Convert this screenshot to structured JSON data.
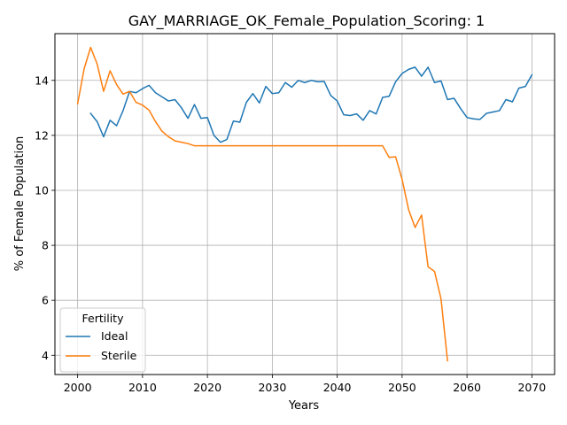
{
  "chart_data": {
    "type": "line",
    "title": "GAY_MARRIAGE_OK_Female_Population_Scoring: 1",
    "xlabel": "Years",
    "ylabel": "% of Female Population",
    "xlim": [
      1996.5,
      2073.5
    ],
    "ylim": [
      3.3,
      15.7
    ],
    "xticks": [
      2000,
      2010,
      2020,
      2030,
      2040,
      2050,
      2060,
      2070
    ],
    "yticks": [
      4,
      6,
      8,
      10,
      12,
      14
    ],
    "grid": true,
    "legend": {
      "title": "Fertility",
      "placement": "lower-left"
    },
    "colors": {
      "Ideal": "#1f77b4",
      "Sterile": "#ff7f0e"
    },
    "series": [
      {
        "name": "Ideal",
        "x": [
          2002,
          2003,
          2004,
          2005,
          2006,
          2007,
          2008,
          2009,
          2010,
          2011,
          2012,
          2013,
          2014,
          2015,
          2016,
          2017,
          2018,
          2019,
          2020,
          2021,
          2022,
          2023,
          2024,
          2025,
          2026,
          2027,
          2028,
          2029,
          2030,
          2031,
          2032,
          2033,
          2034,
          2035,
          2036,
          2037,
          2038,
          2039,
          2040,
          2041,
          2042,
          2043,
          2044,
          2045,
          2046,
          2047,
          2048,
          2049,
          2050,
          2051,
          2052,
          2053,
          2054,
          2055,
          2056,
          2057,
          2058,
          2059,
          2060,
          2061,
          2062,
          2063,
          2064,
          2065,
          2066,
          2067,
          2068,
          2069,
          2070
        ],
        "values": [
          12.8,
          12.5,
          11.95,
          12.55,
          12.35,
          12.9,
          13.6,
          13.55,
          13.7,
          13.82,
          13.55,
          13.4,
          13.25,
          13.3,
          13.0,
          12.62,
          13.12,
          12.62,
          12.65,
          12.0,
          11.75,
          11.85,
          12.52,
          12.48,
          13.2,
          13.52,
          13.18,
          13.78,
          13.52,
          13.55,
          13.92,
          13.75,
          14.0,
          13.92,
          14.0,
          13.95,
          13.96,
          13.45,
          13.25,
          12.75,
          12.72,
          12.78,
          12.55,
          12.9,
          12.78,
          13.38,
          13.42,
          13.95,
          14.25,
          14.4,
          14.48,
          14.15,
          14.48,
          13.92,
          13.98,
          13.3,
          13.35,
          12.98,
          12.65,
          12.6,
          12.58,
          12.8,
          12.85,
          12.9,
          13.3,
          13.22,
          13.72,
          13.78,
          14.2
        ]
      },
      {
        "name": "Sterile",
        "x": [
          2000,
          2001,
          2002,
          2003,
          2004,
          2005,
          2006,
          2007,
          2008,
          2009,
          2010,
          2011,
          2012,
          2013,
          2014,
          2015,
          2016,
          2017,
          2018,
          2019,
          2020,
          2021,
          2022,
          2023,
          2024,
          2025,
          2026,
          2027,
          2028,
          2029,
          2030,
          2031,
          2032,
          2033,
          2034,
          2035,
          2036,
          2037,
          2038,
          2039,
          2040,
          2041,
          2042,
          2043,
          2044,
          2045,
          2046,
          2047,
          2048,
          2049,
          2050,
          2051,
          2052,
          2053,
          2054,
          2055,
          2056,
          2057
        ],
        "values": [
          13.15,
          14.42,
          15.2,
          14.6,
          13.6,
          14.35,
          13.85,
          13.5,
          13.6,
          13.2,
          13.1,
          12.92,
          12.5,
          12.15,
          11.95,
          11.8,
          11.75,
          11.7,
          11.62,
          11.62,
          11.62,
          11.62,
          11.62,
          11.62,
          11.62,
          11.62,
          11.62,
          11.62,
          11.62,
          11.62,
          11.62,
          11.62,
          11.62,
          11.62,
          11.62,
          11.62,
          11.62,
          11.62,
          11.62,
          11.62,
          11.62,
          11.62,
          11.62,
          11.62,
          11.62,
          11.62,
          11.62,
          11.62,
          11.2,
          11.22,
          10.4,
          9.3,
          8.65,
          9.1,
          7.22,
          7.05,
          6.05,
          3.8
        ]
      }
    ]
  }
}
